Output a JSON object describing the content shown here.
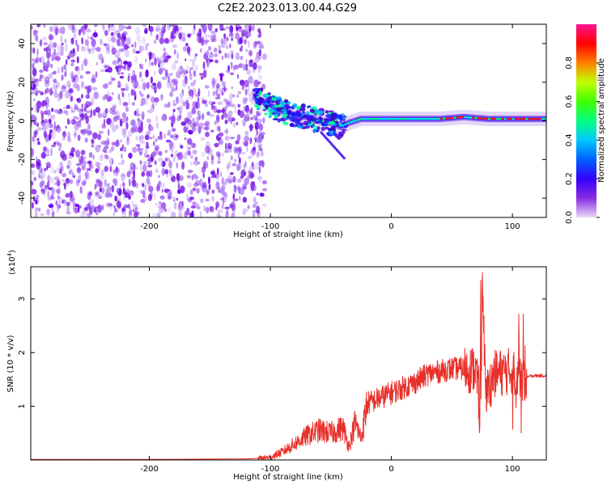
{
  "title": "C2E2.2023.013.00.44.G29",
  "chart_data": [
    {
      "type": "heatmap",
      "xlabel": "Height of straight line (km)",
      "ylabel": "Frequency (Hz)",
      "xlim": [
        -298,
        128
      ],
      "ylim": [
        -50,
        50
      ],
      "xticks": [
        -200,
        -100,
        0,
        100
      ],
      "xticklabels": [
        "-200",
        "-100",
        "0",
        "100"
      ],
      "yticks": [
        -40,
        -20,
        0,
        20,
        40
      ],
      "yticklabels": [
        "-40",
        "-20",
        "0",
        "20",
        "40"
      ],
      "noise_region_x": [
        -298,
        -110
      ],
      "signal_track": [
        {
          "x": -112,
          "y": 12
        },
        {
          "x": -100,
          "y": 8
        },
        {
          "x": -90,
          "y": 5
        },
        {
          "x": -80,
          "y": 3
        },
        {
          "x": -70,
          "y": 2
        },
        {
          "x": -60,
          "y": 0
        },
        {
          "x": -50,
          "y": -1
        },
        {
          "x": -42,
          "y": -3
        },
        {
          "x": -35,
          "y": -1
        },
        {
          "x": -25,
          "y": 1
        },
        {
          "x": -15,
          "y": 1
        },
        {
          "x": 0,
          "y": 1
        },
        {
          "x": 20,
          "y": 1
        },
        {
          "x": 40,
          "y": 1
        },
        {
          "x": 60,
          "y": 2
        },
        {
          "x": 80,
          "y": 1
        },
        {
          "x": 100,
          "y": 1
        },
        {
          "x": 128,
          "y": 1
        }
      ],
      "colorbar": {
        "label": "Normalized spectral amplitude",
        "range": [
          0,
          1
        ],
        "ticks": [
          0.0,
          0.2,
          0.4,
          0.6,
          0.8
        ],
        "ticklabels": [
          "0.0",
          "0.2",
          "0.4",
          "0.6",
          "0.8"
        ],
        "colors": [
          "#e8d8f8",
          "#8a2be2",
          "#3300ff",
          "#0060ff",
          "#00c8ff",
          "#00ff80",
          "#40ff00",
          "#c0ff00",
          "#ff8000",
          "#ff0000",
          "#ff1493"
        ]
      }
    },
    {
      "type": "line",
      "xlabel": "Height of straight line (km)",
      "ylabel": "SNR (10 * v/v)",
      "scale_label": "(x10",
      "scale_exponent": "4",
      "scale_close": ")",
      "xlim": [
        -298,
        128
      ],
      "ylim": [
        0,
        3.6
      ],
      "xticks": [
        -200,
        -100,
        0,
        100
      ],
      "xticklabels": [
        "-200",
        "-100",
        "0",
        "100"
      ],
      "yticks": [
        1,
        2,
        3
      ],
      "yticklabels": [
        "1",
        "2",
        "3"
      ],
      "color": "#e8302a",
      "series": [
        {
          "values": [
            [
              -298,
              0.01
            ],
            [
              -200,
              0.01
            ],
            [
              -120,
              0.02
            ],
            [
              -110,
              0.03
            ],
            [
              -100,
              0.05
            ],
            [
              -90,
              0.15
            ],
            [
              -80,
              0.3
            ],
            [
              -70,
              0.45
            ],
            [
              -60,
              0.55
            ],
            [
              -50,
              0.5
            ],
            [
              -40,
              0.6
            ],
            [
              -35,
              0.25
            ],
            [
              -30,
              0.7
            ],
            [
              -25,
              0.4
            ],
            [
              -20,
              1.05
            ],
            [
              -10,
              1.15
            ],
            [
              0,
              1.25
            ],
            [
              10,
              1.35
            ],
            [
              20,
              1.45
            ],
            [
              30,
              1.6
            ],
            [
              40,
              1.65
            ],
            [
              50,
              1.7
            ],
            [
              60,
              1.7
            ],
            [
              65,
              1.68
            ],
            [
              70,
              1.7
            ],
            [
              73,
              0.9
            ],
            [
              75,
              3.4
            ],
            [
              78,
              1.2
            ],
            [
              85,
              1.6
            ],
            [
              95,
              1.65
            ],
            [
              100,
              1.65
            ],
            [
              105,
              1.55
            ],
            [
              110,
              1.5
            ],
            [
              115,
              1.57
            ],
            [
              128,
              1.57
            ]
          ]
        }
      ]
    }
  ]
}
